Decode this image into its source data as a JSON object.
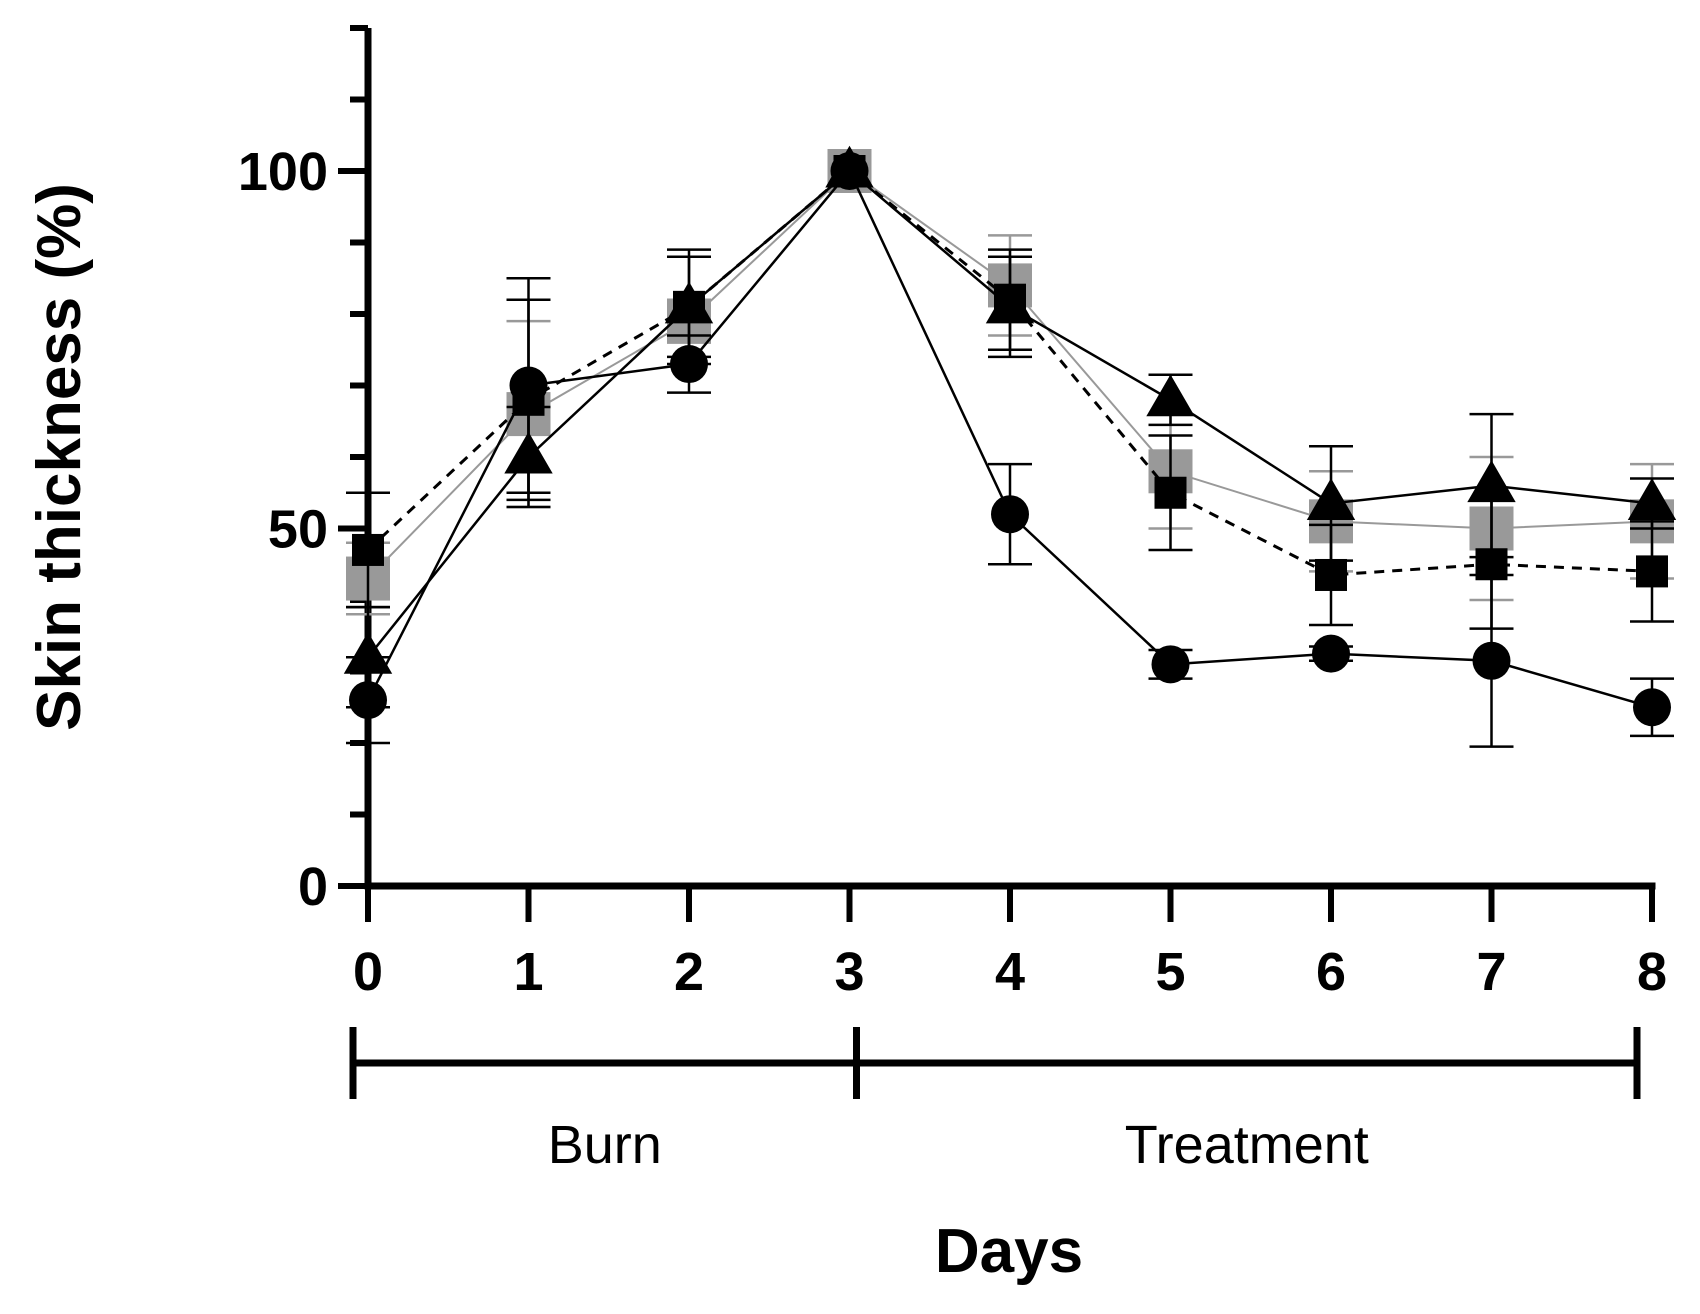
{
  "chart_data": {
    "type": "line",
    "title": "",
    "xlabel": "Days",
    "ylabel": "Skin thickness (%)",
    "xlim": [
      0,
      8
    ],
    "ylim": [
      0,
      120
    ],
    "x_ticks": [
      0,
      1,
      2,
      3,
      4,
      5,
      6,
      7,
      8
    ],
    "y_tick_labels": [
      0,
      50,
      100
    ],
    "y_minor_step": 10,
    "grid": false,
    "legend": "none",
    "x": [
      0,
      1,
      2,
      3,
      4,
      5,
      6,
      7,
      8
    ],
    "series": [
      {
        "name": "circle",
        "marker": "circle",
        "color": "#000000",
        "dash": "solid",
        "values": [
          26,
          70,
          73,
          100,
          52,
          31,
          32.5,
          31.5,
          25
        ],
        "errors": [
          6,
          15,
          4,
          0,
          7,
          2,
          1,
          12,
          4
        ]
      },
      {
        "name": "triangle",
        "marker": "triangle",
        "color": "#000000",
        "dash": "solid",
        "values": [
          32,
          60,
          81,
          100,
          81,
          68,
          53.5,
          56,
          53.5
        ],
        "errors": [
          7,
          7,
          7,
          0,
          7,
          3.5,
          8,
          10,
          3.5
        ]
      },
      {
        "name": "grey-square",
        "marker": "square",
        "color": "#999999",
        "dash": "solid",
        "values": [
          43,
          66,
          79,
          100,
          84,
          58,
          51,
          50,
          51
        ],
        "errors": [
          5,
          13,
          3,
          0,
          7,
          8,
          7,
          10,
          8
        ]
      },
      {
        "name": "black-square-dashed",
        "marker": "square",
        "color": "#000000",
        "dash": "dashed",
        "values": [
          47,
          68,
          81,
          100,
          82,
          55,
          43.5,
          45,
          44
        ],
        "errors": [
          8,
          14,
          8,
          0,
          7,
          8,
          7,
          9,
          7
        ]
      }
    ],
    "phases": [
      {
        "label": "Burn",
        "from": 0,
        "to": 3
      },
      {
        "label": "Treatment",
        "from": 3,
        "to": 8
      }
    ]
  }
}
